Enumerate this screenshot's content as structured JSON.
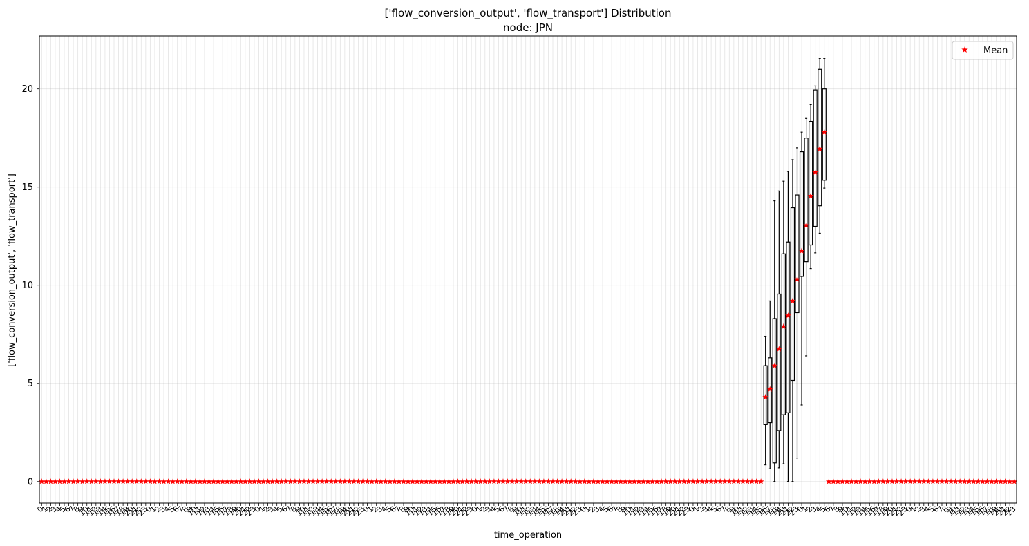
{
  "chart_data": {
    "type": "box",
    "title": "['flow_conversion_output', 'flow_transport'] Distribution",
    "subtitle": "node: JPN",
    "xlabel": "time_operation",
    "ylabel": "['flow_conversion_output', 'flow_transport']",
    "ylim": [
      -1.1,
      22.7
    ],
    "y_ticks": [
      0,
      5,
      10,
      15,
      20
    ],
    "grid": true,
    "legend": {
      "position": "top-right",
      "entries": [
        {
          "label": "Mean",
          "marker": "star",
          "color": "#ff0000"
        }
      ]
    },
    "num_positions": 216,
    "x_tick_labels": "time step index repeating 0–23 for each of 9 days",
    "mean_color": "#ff0000",
    "box_color": "#000000",
    "zero_mean_value": 0,
    "active_boxes": [
      {
        "index": 160,
        "mean": 4.3,
        "q1": 2.9,
        "q3": 5.9,
        "whisker_low": 0.85,
        "whisker_high": 7.4
      },
      {
        "index": 161,
        "mean": 4.7,
        "q1": 3.0,
        "q3": 6.3,
        "whisker_low": 0.65,
        "whisker_high": 9.2
      },
      {
        "index": 162,
        "mean": 5.9,
        "q1": 0.95,
        "q3": 8.3,
        "whisker_low": 0.0,
        "whisker_high": 14.3
      },
      {
        "index": 163,
        "mean": 6.75,
        "q1": 2.6,
        "q3": 9.55,
        "whisker_low": 0.7,
        "whisker_high": 14.8
      },
      {
        "index": 164,
        "mean": 7.9,
        "q1": 3.4,
        "q3": 11.6,
        "whisker_low": 0.9,
        "whisker_high": 15.3
      },
      {
        "index": 165,
        "mean": 8.45,
        "q1": 3.5,
        "q3": 12.2,
        "whisker_low": 0.0,
        "whisker_high": 15.8
      },
      {
        "index": 166,
        "mean": 9.2,
        "q1": 5.15,
        "q3": 13.95,
        "whisker_low": 0.0,
        "whisker_high": 16.4
      },
      {
        "index": 167,
        "mean": 10.3,
        "q1": 8.6,
        "q3": 14.6,
        "whisker_low": 1.2,
        "whisker_high": 17.0
      },
      {
        "index": 168,
        "mean": 11.75,
        "q1": 10.45,
        "q3": 16.8,
        "whisker_low": 3.9,
        "whisker_high": 17.8
      },
      {
        "index": 169,
        "mean": 13.05,
        "q1": 11.2,
        "q3": 17.5,
        "whisker_low": 6.4,
        "whisker_high": 18.5
      },
      {
        "index": 170,
        "mean": 14.55,
        "q1": 12.05,
        "q3": 18.35,
        "whisker_low": 10.85,
        "whisker_high": 19.2
      },
      {
        "index": 171,
        "mean": 15.75,
        "q1": 13.0,
        "q3": 19.95,
        "whisker_low": 11.65,
        "whisker_high": 20.15
      },
      {
        "index": 172,
        "mean": 16.95,
        "q1": 14.05,
        "q3": 21.0,
        "whisker_low": 12.65,
        "whisker_high": 21.55
      },
      {
        "index": 173,
        "mean": 17.8,
        "q1": 15.35,
        "q3": 20.0,
        "whisker_low": 14.95,
        "whisker_high": 21.55
      }
    ]
  }
}
